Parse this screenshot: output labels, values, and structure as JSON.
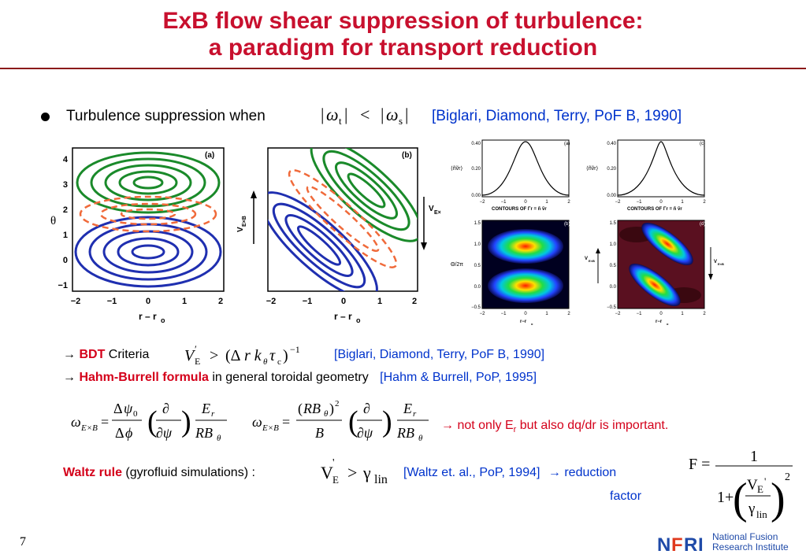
{
  "slide": {
    "title_line1": "ExB flow shear suppression of turbulence:",
    "title_line2": "a paradigm for transport reduction",
    "bullet_text": "Turbulence suppression when",
    "bullet_ref": "[Biglari, Diamond, Terry, PoF B, 1990]",
    "bdt_arrow": "→",
    "bdt_label": "BDT",
    "bdt_criteria": "Criteria",
    "bdt_ref": "[Biglari, Diamond, Terry, PoF B, 1990]",
    "hb_arrow": "→",
    "hb_label": "Hahm-Burrell formula",
    "hb_text": "in general toroidal geometry",
    "hb_ref": "[Hahm & Burrell, PoP, 1995]",
    "note_arrow": "→",
    "note_text_a": "not only E",
    "note_sub": "r",
    "note_text_b": "but also dq/dr is important.",
    "waltz_label": "Waltz rule",
    "waltz_text": "(gyrofluid simulations) :",
    "waltz_ref": "[Waltz et. al., PoP, 1994]",
    "waltz_arrow": "→",
    "waltz_result": "reduction",
    "waltz_result2": "factor",
    "page_number": "7",
    "logo_text1": "National Fusion",
    "logo_text2": "Research Institute"
  },
  "figure_left": {
    "panel_a": "(a)",
    "panel_b": "(b)",
    "ylabel": "θ",
    "xlabel": "r – r",
    "xlabel_sub": "o",
    "vexb": "V",
    "vexb_sub": "E×B",
    "yticks": [
      "4",
      "3",
      "2",
      "1",
      "0",
      "−1"
    ],
    "xticks": [
      "−2",
      "−1",
      "0",
      "1",
      "2"
    ]
  },
  "figure_right": {
    "panel_a": "(a)",
    "panel_b": "(b)",
    "panel_c": "(c)",
    "panel_d": "(d)",
    "ylabel_top": "⟨ñṽr⟩",
    "contours_label": "CONTOURS OF Γr = ñ ṽr",
    "ylabel_bottom": "Θ/2π",
    "xlabel": "r−r",
    "xlabel_sub": "o",
    "vexb": "V",
    "vexb_sub": "E×B",
    "top_yticks": [
      "0.40",
      "0.20",
      "0.00"
    ],
    "top_xticks": [
      "−2",
      "−1",
      "0",
      "1",
      "2"
    ],
    "bot_yticks": [
      "1.5",
      "1.0",
      "0.5",
      "0.0",
      "−0.5"
    ],
    "bot_xticks": [
      "−2",
      "−1",
      "0",
      "1",
      "2"
    ]
  },
  "colors": {
    "title": "#c8102e",
    "accent_red": "#d4001a",
    "reference_blue": "#0033cc",
    "rule": "#8b1a1a",
    "contour_green": "#1a8a2a",
    "contour_blue": "#1f2fb0",
    "contour_dashed": "#f06a3a"
  }
}
